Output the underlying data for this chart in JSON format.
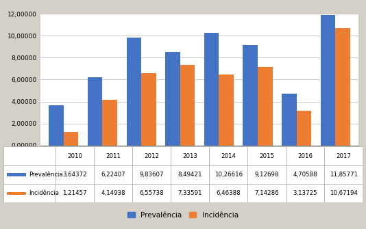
{
  "years": [
    "2010",
    "2011",
    "2012",
    "2013",
    "2014",
    "2015",
    "2016",
    "2017"
  ],
  "prevalencia": [
    3.64372,
    6.22407,
    9.83607,
    8.49421,
    10.26616,
    9.12698,
    4.70588,
    11.85771
  ],
  "incidencia": [
    1.21457,
    4.14938,
    6.55738,
    7.33591,
    6.46388,
    7.14286,
    3.13725,
    10.67194
  ],
  "color_prevalencia": "#4472C4",
  "color_incidencia": "#ED7D31",
  "ylim": [
    0,
    12.0
  ],
  "yticks": [
    0.0,
    2.0,
    4.0,
    6.0,
    8.0,
    10.0,
    12.0
  ],
  "ytick_labels": [
    "0,00000",
    "2,00000",
    "4,00000",
    "6,00000",
    "8,00000",
    "10,00000",
    "12,00000"
  ],
  "legend_label_prev": "Prevalência",
  "legend_label_inci": "Incidência",
  "table_header": [
    "",
    "2010",
    "2011",
    "2012",
    "2013",
    "2014",
    "2015",
    "2016",
    "2017"
  ],
  "table_row1_label": "Prevalência",
  "table_row2_label": "Incidência",
  "table_row1_vals": [
    "3,64372",
    "6,22407",
    "9,83607",
    "8,49421",
    "10,26616",
    "9,12698",
    "4,70588",
    "11,85771"
  ],
  "table_row2_vals": [
    "1,21457",
    "4,14938",
    "6,55738",
    "7,33591",
    "6,46388",
    "7,14286",
    "3,13725",
    "10,67194"
  ],
  "bg_color": "#D4D0C8",
  "chart_bg": "#FFFFFF",
  "bar_width": 0.38,
  "grid_color": "#C0C0C0"
}
